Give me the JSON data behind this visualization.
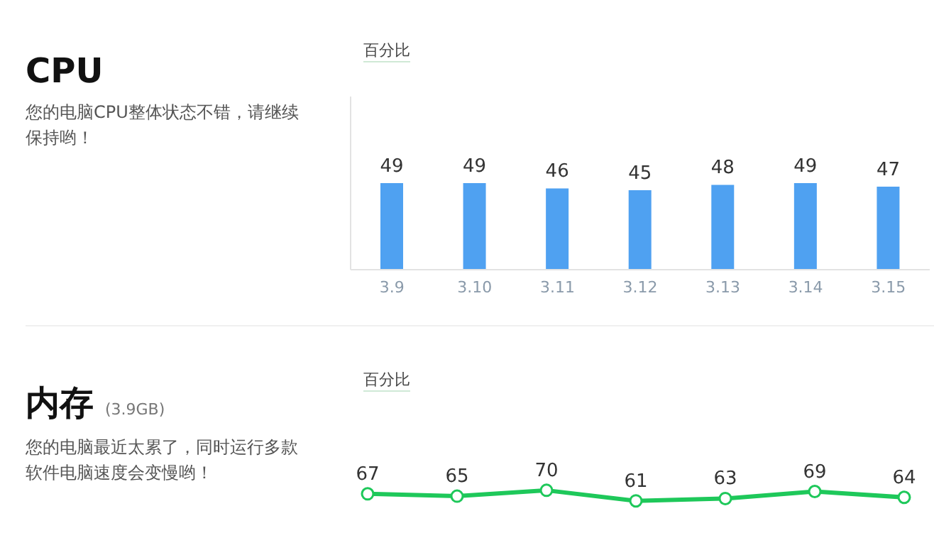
{
  "chart_data": [
    {
      "type": "other",
      "title": "CPU",
      "annotations": [
        "您的电脑CPU整体状态不错，请继续保持哟！"
      ]
    },
    {
      "type": "bar",
      "ylabel": "百分比",
      "categories": [
        "3.9",
        "3.10",
        "3.11",
        "3.12",
        "3.13",
        "3.14",
        "3.15"
      ],
      "values": [
        49,
        49,
        46,
        45,
        48,
        49,
        47
      ],
      "color": "#4fa1f1",
      "data_labels": true,
      "grid": false,
      "legend": false
    },
    {
      "type": "other",
      "title": "内存",
      "subtitle": "(3.9GB)",
      "annotations": [
        "您的电脑最近太累了，同时运行多款软件电脑速度会变慢哟！"
      ]
    },
    {
      "type": "line",
      "ylabel": "百分比",
      "categories": [
        null,
        null,
        null,
        null,
        null,
        null,
        null
      ],
      "values": [
        67,
        65,
        70,
        61,
        63,
        69,
        64
      ],
      "color": "#1ec85a",
      "marker": "circle",
      "data_labels": true,
      "grid": false,
      "legend": false
    }
  ]
}
